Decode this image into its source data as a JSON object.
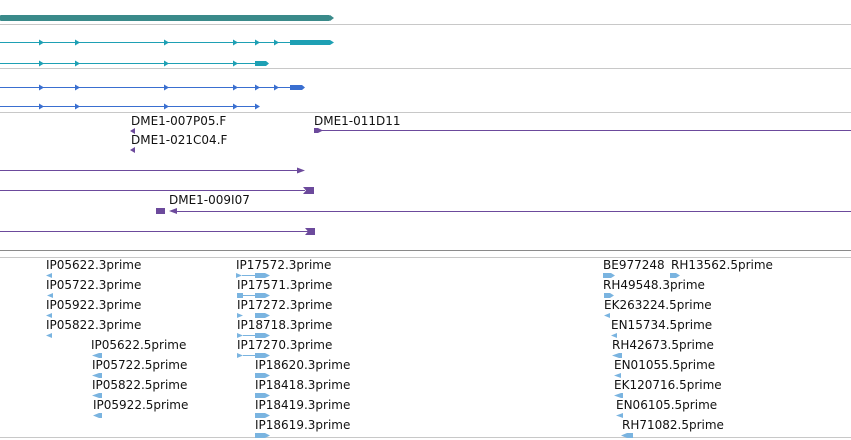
{
  "colors": {
    "gene": "#3a8a8a",
    "transcript_teal": "#1ea0b4",
    "transcript_blue": "#3a6fd0",
    "clone": "#6c4a9c",
    "est": "#7ab4e0",
    "separator": "#c8c8c8"
  },
  "tracks": {
    "clones": {
      "labels": [
        "DME1-007P05.F",
        "DME1-021C04.F",
        "DME1-011D11",
        "DME1-009I07"
      ]
    },
    "ests": {
      "col1": [
        "IP05622.3prime",
        "IP05722.3prime",
        "IP05922.3prime",
        "IP05822.3prime"
      ],
      "col2": [
        "IP05622.5prime",
        "IP05722.5prime",
        "IP05822.5prime",
        "IP05922.5prime"
      ],
      "col3": [
        "IP17572.3prime",
        "IP17571.3prime",
        "IP17272.3prime",
        "IP18718.3prime",
        "IP17270.3prime"
      ],
      "col4": [
        "IP18620.3prime",
        "IP18418.3prime",
        "IP18419.3prime",
        "IP18619.3prime"
      ],
      "col5": [
        "BE977248",
        "RH49548.3prime",
        "EK263224.5prime",
        "EN15734.5prime",
        "RH42673.5prime",
        "EN01055.5prime",
        "EK120716.5prime",
        "EN06105.5prime",
        "RH71082.5prime"
      ],
      "col6": [
        "RH13562.5prime"
      ]
    }
  }
}
